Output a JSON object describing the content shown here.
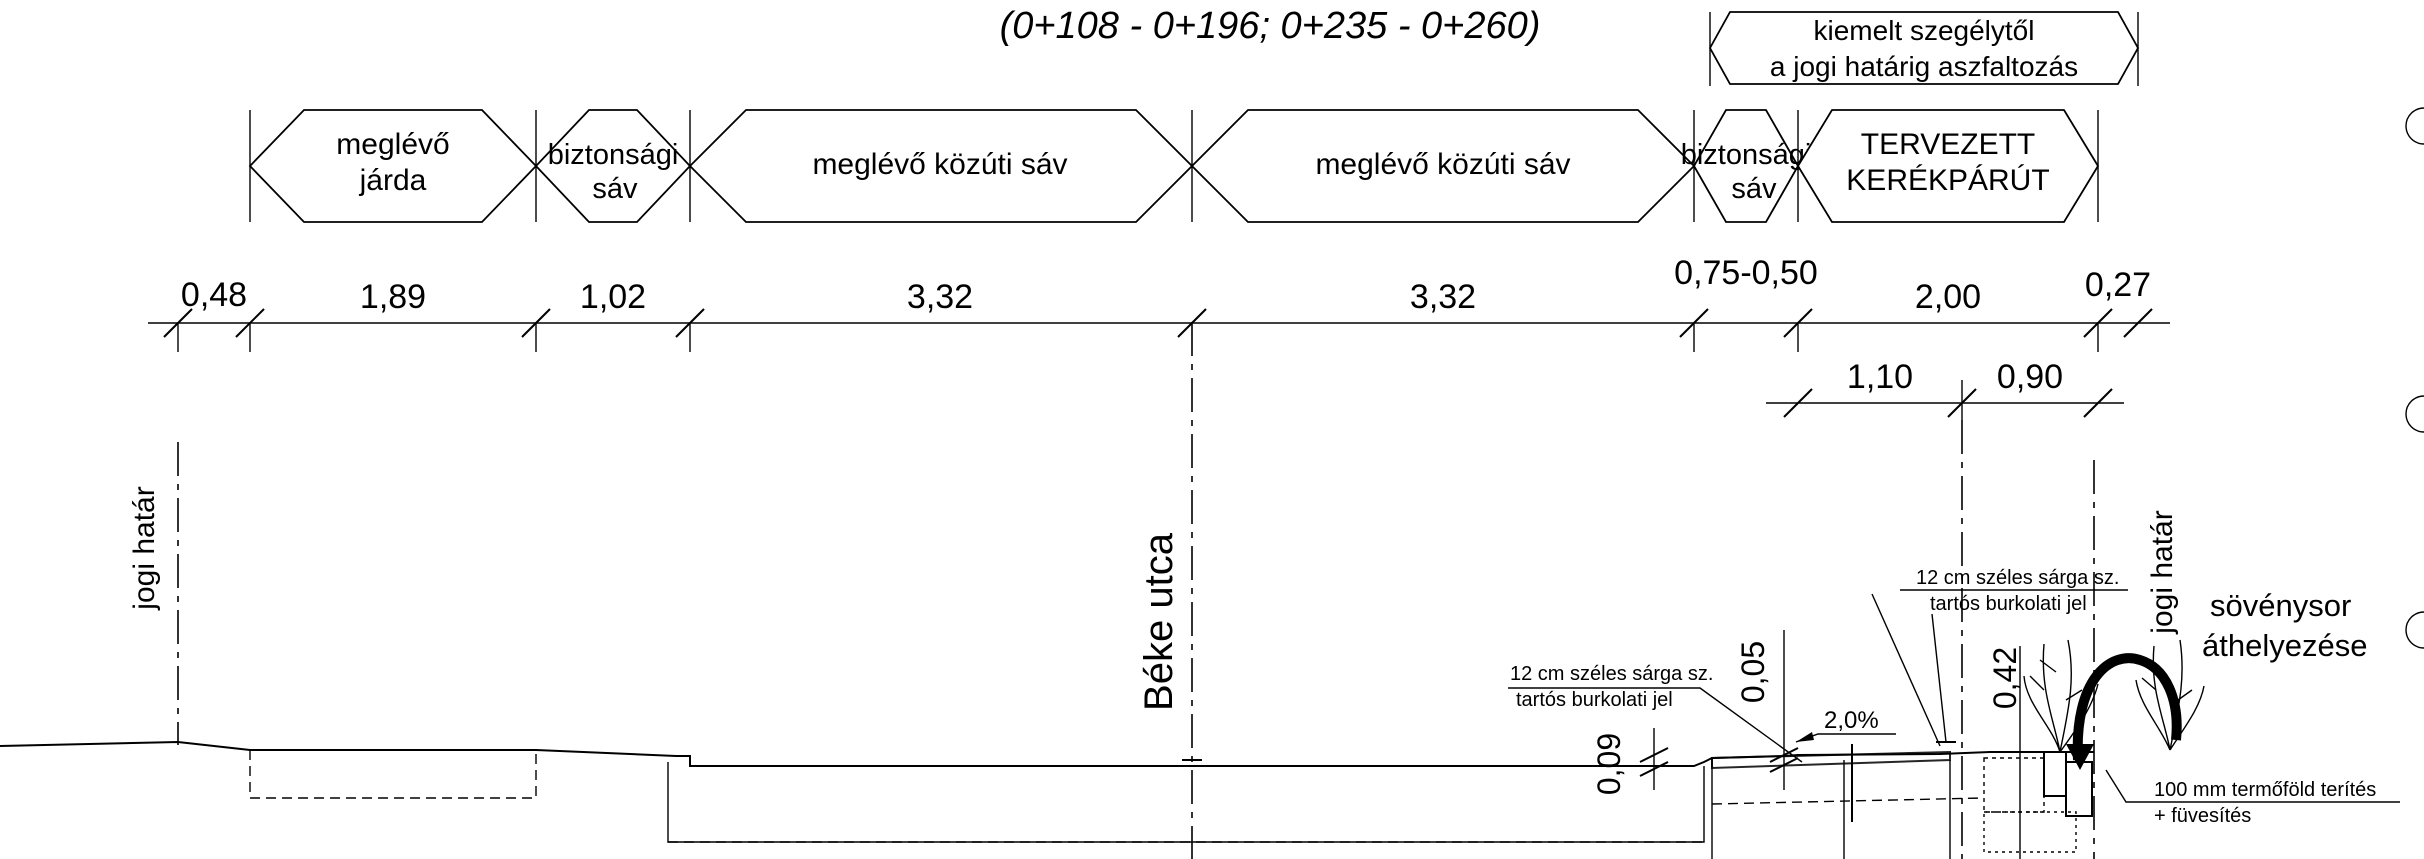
{
  "title": "(0+108 - 0+196; 0+235 - 0+260)",
  "paving_note": [
    "kiemelt szegélytől",
    "a jogi határig aszfaltozás"
  ],
  "zones": [
    {
      "id": "meglevo-jarda",
      "lines": [
        "meglévő",
        "járda"
      ]
    },
    {
      "id": "biztonsagi-sav-left",
      "lines": [
        "biztonsági",
        "sáv"
      ]
    },
    {
      "id": "kozuti-sav-1",
      "lines": [
        "meglévő közúti sáv"
      ]
    },
    {
      "id": "kozuti-sav-2",
      "lines": [
        "meglévő közúti sáv"
      ]
    },
    {
      "id": "biztonsagi-sav-right",
      "lines": [
        "biztonsági",
        "sáv"
      ]
    },
    {
      "id": "tervezett-kerekparut",
      "lines": [
        "TERVEZETT",
        "KERÉKPÁRÚT"
      ]
    }
  ],
  "dimensions_main": [
    "0,48",
    "1,89",
    "1,02",
    "3,32",
    "3,32",
    "0,75-0,50",
    "2,00",
    "0,27"
  ],
  "dimensions_sub": [
    "1,10",
    "0,90"
  ],
  "vertical_dims": [
    "0,05",
    "0,09",
    "0,42"
  ],
  "slope": "2,0%",
  "street_name": "Béke utca",
  "legal_boundary": "jogi határ",
  "marking_note": [
    "12 cm széles sárga sz.",
    "tartós burkolati jel"
  ],
  "hedge_note": [
    "sövénysor",
    "áthelyezése"
  ],
  "soil_note": [
    "100 mm termőföld terítés",
    "+ füvesítés"
  ]
}
